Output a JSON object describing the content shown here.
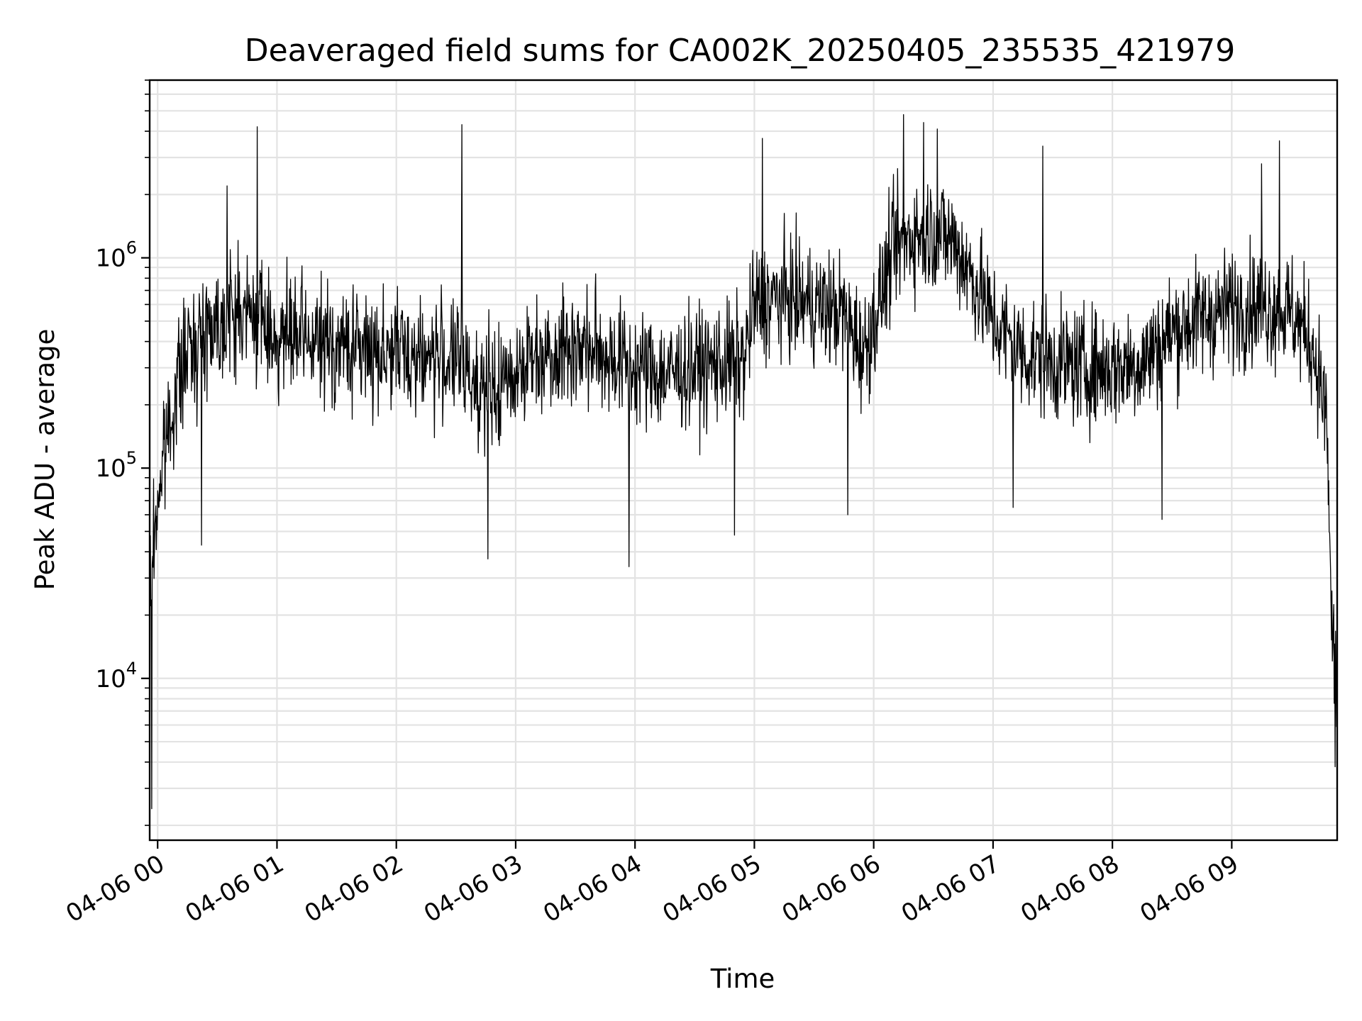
{
  "chart_data": {
    "type": "line",
    "title": "Deaveraged field sums for CA002K_20250405_235535_421979",
    "xlabel": "Time",
    "ylabel": "Peak ADU - average",
    "yscale": "log",
    "ylim": [
      1700,
      7000000
    ],
    "xlim": [
      "2025-04-05 23:56",
      "2025-04-06 09:53"
    ],
    "grid": true,
    "line_color": "#000000",
    "x_ticks": [
      {
        "value": "2025-04-06 00:00",
        "label": "04-06 00"
      },
      {
        "value": "2025-04-06 01:00",
        "label": "04-06 01"
      },
      {
        "value": "2025-04-06 02:00",
        "label": "04-06 02"
      },
      {
        "value": "2025-04-06 03:00",
        "label": "04-06 03"
      },
      {
        "value": "2025-04-06 04:00",
        "label": "04-06 04"
      },
      {
        "value": "2025-04-06 05:00",
        "label": "04-06 05"
      },
      {
        "value": "2025-04-06 06:00",
        "label": "04-06 06"
      },
      {
        "value": "2025-04-06 07:00",
        "label": "04-06 07"
      },
      {
        "value": "2025-04-06 08:00",
        "label": "04-06 08"
      },
      {
        "value": "2025-04-06 09:00",
        "label": "04-06 09"
      }
    ],
    "y_ticks": [
      {
        "value": 10000,
        "base": "10",
        "exp": "4"
      },
      {
        "value": 100000,
        "base": "10",
        "exp": "5"
      },
      {
        "value": 1000000,
        "base": "10",
        "exp": "6"
      }
    ],
    "envelope": {
      "x": [
        "2025-04-05 23:56",
        "2025-04-05 23:58",
        "2025-04-06 00:00",
        "2025-04-06 00:05",
        "2025-04-06 00:10",
        "2025-04-06 00:15",
        "2025-04-06 00:20",
        "2025-04-06 00:25",
        "2025-04-06 00:30",
        "2025-04-06 00:40",
        "2025-04-06 00:50",
        "2025-04-06 01:00",
        "2025-04-06 01:15",
        "2025-04-06 01:30",
        "2025-04-06 01:45",
        "2025-04-06 02:00",
        "2025-04-06 02:15",
        "2025-04-06 02:30",
        "2025-04-06 02:40",
        "2025-04-06 02:50",
        "2025-04-06 03:00",
        "2025-04-06 03:15",
        "2025-04-06 03:30",
        "2025-04-06 03:45",
        "2025-04-06 04:00",
        "2025-04-06 04:15",
        "2025-04-06 04:30",
        "2025-04-06 04:45",
        "2025-04-06 04:55",
        "2025-04-06 05:00",
        "2025-04-06 05:15",
        "2025-04-06 05:30",
        "2025-04-06 05:45",
        "2025-04-06 05:55",
        "2025-04-06 06:00",
        "2025-04-06 06:10",
        "2025-04-06 06:20",
        "2025-04-06 06:30",
        "2025-04-06 06:40",
        "2025-04-06 06:50",
        "2025-04-06 07:00",
        "2025-04-06 07:15",
        "2025-04-06 07:30",
        "2025-04-06 07:45",
        "2025-04-06 08:00",
        "2025-04-06 08:15",
        "2025-04-06 08:30",
        "2025-04-06 08:45",
        "2025-04-06 09:00",
        "2025-04-06 09:15",
        "2025-04-06 09:30",
        "2025-04-06 09:40",
        "2025-04-06 09:45",
        "2025-04-06 09:48",
        "2025-04-06 09:50",
        "2025-04-06 09:53"
      ],
      "typical": [
        25000,
        45000,
        70000,
        150000,
        250000,
        350000,
        420000,
        480000,
        500000,
        550000,
        520000,
        420000,
        400000,
        380000,
        370000,
        360000,
        340000,
        330000,
        260000,
        220000,
        300000,
        360000,
        380000,
        350000,
        300000,
        280000,
        300000,
        320000,
        330000,
        600000,
        650000,
        600000,
        550000,
        350000,
        500000,
        1100000,
        1300000,
        1350000,
        1200000,
        800000,
        500000,
        350000,
        320000,
        300000,
        300000,
        320000,
        450000,
        520000,
        580000,
        600000,
        550000,
        400000,
        250000,
        150000,
        20000,
        8000
      ]
    },
    "spikes": [
      {
        "x": "2025-04-05 23:57",
        "y": 2400
      },
      {
        "x": "2025-04-06 00:50",
        "y": 4200000
      },
      {
        "x": "2025-04-06 00:35",
        "y": 2200000
      },
      {
        "x": "2025-04-06 00:22",
        "y": 43000
      },
      {
        "x": "2025-04-06 02:33",
        "y": 4300000
      },
      {
        "x": "2025-04-06 02:46",
        "y": 37000
      },
      {
        "x": "2025-04-06 03:57",
        "y": 34000
      },
      {
        "x": "2025-04-06 04:50",
        "y": 48000
      },
      {
        "x": "2025-04-06 05:04",
        "y": 3700000
      },
      {
        "x": "2025-04-06 05:47",
        "y": 60000
      },
      {
        "x": "2025-04-06 06:15",
        "y": 4800000
      },
      {
        "x": "2025-04-06 06:25",
        "y": 4400000
      },
      {
        "x": "2025-04-06 06:32",
        "y": 4100000
      },
      {
        "x": "2025-04-06 07:25",
        "y": 3400000
      },
      {
        "x": "2025-04-06 07:10",
        "y": 65000
      },
      {
        "x": "2025-04-06 08:25",
        "y": 57000
      },
      {
        "x": "2025-04-06 09:24",
        "y": 3600000
      },
      {
        "x": "2025-04-06 09:15",
        "y": 2800000
      },
      {
        "x": "2025-04-06 09:52",
        "y": 3800
      }
    ]
  }
}
